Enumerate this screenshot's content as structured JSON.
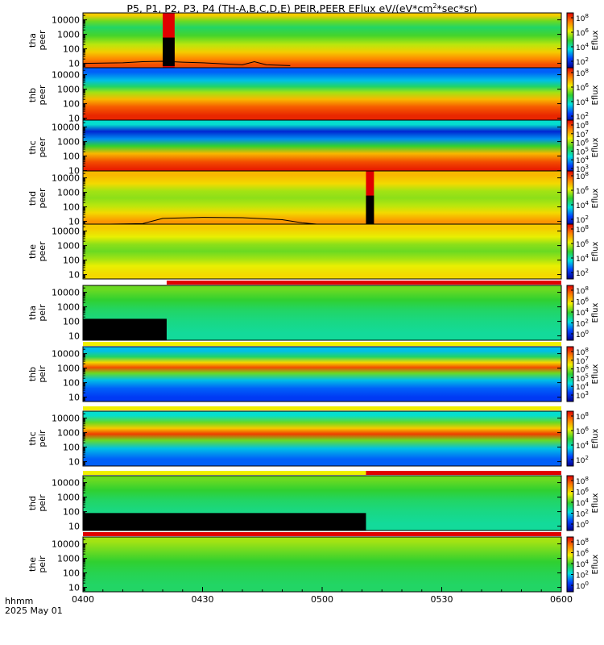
{
  "title": {
    "prefix": "P5, P1, P2, P3, P4 (TH-A,B,C,D,E) PEIR,PEER EFlux eV/(eV*cm",
    "sup": "2",
    "suffix": "*sec*sr)"
  },
  "footer": {
    "time_label": "hhmm",
    "date_label": "2025 May 01"
  },
  "colors": {
    "dark_blue": "#000090",
    "blue": "#0040ff",
    "cyan": "#00e0e0",
    "green": "#30d030",
    "yellow": "#f0f000",
    "orange": "#ff8000",
    "red": "#e00000",
    "flag_red": "#e00000"
  },
  "chart_data": {
    "type": "heatmap",
    "x_axis": {
      "range": [
        "0400",
        "0600"
      ],
      "tick_labels": [
        "0400",
        "0430",
        "0500",
        "0530",
        "0600"
      ],
      "minor_ticks_between": 5
    },
    "y_axis_common": {
      "scale": "log",
      "range_eV": [
        5,
        30000
      ],
      "tick_labels": [
        "10",
        "100",
        "1000",
        "10000"
      ]
    },
    "panels": [
      {
        "probe_label": "tha",
        "species_label": "peer",
        "colorbar_label": "Eflux",
        "colorbar_ticks": [
          "10",
          "10",
          "10",
          "10"
        ],
        "colorbar_exponents": [
          "2",
          "4",
          "6",
          "8"
        ],
        "color_bands": [
          {
            "energy_eV": 20000,
            "level": 0.72
          },
          {
            "energy_eV": 8000,
            "level": 0.55
          },
          {
            "energy_eV": 3000,
            "level": 0.45
          },
          {
            "energy_eV": 800,
            "level": 0.52
          },
          {
            "energy_eV": 200,
            "level": 0.62
          },
          {
            "energy_eV": 60,
            "level": 0.72
          },
          {
            "energy_eV": 20,
            "level": 0.82
          },
          {
            "energy_eV": 8,
            "level": 0.9
          }
        ],
        "gaps": [
          [
            "0420",
            "0423"
          ]
        ],
        "overlay_line": true,
        "top_flag": null
      },
      {
        "probe_label": "thb",
        "species_label": "peer",
        "colorbar_label": "Eflux",
        "colorbar_ticks": [
          "10",
          "10",
          "10",
          "10"
        ],
        "colorbar_exponents": [
          "2",
          "4",
          "6",
          "8"
        ],
        "color_bands": [
          {
            "energy_eV": 15000,
            "level": 0.2
          },
          {
            "energy_eV": 4000,
            "level": 0.3
          },
          {
            "energy_eV": 1500,
            "level": 0.45
          },
          {
            "energy_eV": 600,
            "level": 0.6
          },
          {
            "energy_eV": 200,
            "level": 0.75
          },
          {
            "energy_eV": 60,
            "level": 0.88
          },
          {
            "energy_eV": 15,
            "level": 0.95
          }
        ],
        "gaps": [],
        "overlay_line": false,
        "top_flag": null
      },
      {
        "probe_label": "thc",
        "species_label": "peer",
        "colorbar_label": "Eflux",
        "colorbar_ticks": [
          "10",
          "10",
          "10",
          "10",
          "10",
          "10"
        ],
        "colorbar_exponents": [
          "3",
          "4",
          "5",
          "6",
          "7",
          "8"
        ],
        "color_bands": [
          {
            "energy_eV": 15000,
            "level": 0.35
          },
          {
            "energy_eV": 5000,
            "level": 0.1
          },
          {
            "energy_eV": 1500,
            "level": 0.25
          },
          {
            "energy_eV": 500,
            "level": 0.5
          },
          {
            "energy_eV": 150,
            "level": 0.75
          },
          {
            "energy_eV": 40,
            "level": 0.9
          },
          {
            "energy_eV": 10,
            "level": 0.97
          }
        ],
        "gaps": [],
        "overlay_line": false,
        "top_flag": null
      },
      {
        "probe_label": "thd",
        "species_label": "peer",
        "colorbar_label": "Eflux",
        "colorbar_ticks": [
          "10",
          "10",
          "10",
          "10"
        ],
        "colorbar_exponents": [
          "2",
          "4",
          "6",
          "8"
        ],
        "color_bands": [
          {
            "energy_eV": 15000,
            "level": 0.75
          },
          {
            "energy_eV": 4000,
            "level": 0.7
          },
          {
            "energy_eV": 1200,
            "level": 0.6
          },
          {
            "energy_eV": 400,
            "level": 0.58
          },
          {
            "energy_eV": 120,
            "level": 0.62
          },
          {
            "energy_eV": 40,
            "level": 0.7
          },
          {
            "energy_eV": 10,
            "level": 0.8
          }
        ],
        "gaps": [
          [
            "0511",
            "0513"
          ]
        ],
        "overlay_line": true,
        "top_flag": null
      },
      {
        "probe_label": "the",
        "species_label": "peer",
        "colorbar_label": "Eflux",
        "colorbar_ticks": [
          "10",
          "10",
          "10",
          "10"
        ],
        "colorbar_exponents": [
          "2",
          "4",
          "6",
          "8"
        ],
        "color_bands": [
          {
            "energy_eV": 15000,
            "level": 0.72
          },
          {
            "energy_eV": 4000,
            "level": 0.66
          },
          {
            "energy_eV": 1200,
            "level": 0.58
          },
          {
            "energy_eV": 400,
            "level": 0.55
          },
          {
            "energy_eV": 120,
            "level": 0.6
          },
          {
            "energy_eV": 40,
            "level": 0.66
          },
          {
            "energy_eV": 10,
            "level": 0.7
          }
        ],
        "gaps": [],
        "overlay_line": false,
        "top_flag": null
      },
      {
        "probe_label": "tha",
        "species_label": "peir",
        "colorbar_label": "Eflux",
        "colorbar_ticks": [
          "10",
          "10",
          "10",
          "10",
          "10"
        ],
        "colorbar_exponents": [
          "0",
          "2",
          "4",
          "6",
          "8"
        ],
        "color_bands": [
          {
            "energy_eV": 15000,
            "level": 0.55
          },
          {
            "energy_eV": 3000,
            "level": 0.5
          },
          {
            "energy_eV": 600,
            "level": 0.45
          },
          {
            "energy_eV": 100,
            "level": 0.42
          },
          {
            "energy_eV": 15,
            "level": 0.4
          }
        ],
        "gaps": [],
        "black_low_region": {
          "from": "0400",
          "to": "0421",
          "below_eV": 150
        },
        "overlay_line": false,
        "top_flag": {
          "from": "0400",
          "to": "0421",
          "color": "white",
          "rest": "red"
        }
      },
      {
        "probe_label": "thb",
        "species_label": "peir",
        "colorbar_label": "Eflux",
        "colorbar_ticks": [
          "10",
          "10",
          "10",
          "10",
          "10",
          "10"
        ],
        "colorbar_exponents": [
          "3",
          "4",
          "5",
          "6",
          "7",
          "8"
        ],
        "color_bands": [
          {
            "energy_eV": 15000,
            "level": 0.3
          },
          {
            "energy_eV": 6000,
            "level": 0.45
          },
          {
            "energy_eV": 2500,
            "level": 0.7
          },
          {
            "energy_eV": 1100,
            "level": 0.9
          },
          {
            "energy_eV": 450,
            "level": 0.55
          },
          {
            "energy_eV": 150,
            "level": 0.3
          },
          {
            "energy_eV": 40,
            "level": 0.2
          },
          {
            "energy_eV": 10,
            "level": 0.15
          }
        ],
        "gaps": [],
        "overlay_line": false,
        "top_flag": {
          "from": "0400",
          "to": "0600",
          "color": "yellow",
          "rest": null
        }
      },
      {
        "probe_label": "thc",
        "species_label": "peir",
        "colorbar_label": "Eflux",
        "colorbar_ticks": [
          "10",
          "10",
          "10",
          "10"
        ],
        "colorbar_exponents": [
          "2",
          "4",
          "6",
          "8"
        ],
        "color_bands": [
          {
            "energy_eV": 15000,
            "level": 0.35
          },
          {
            "energy_eV": 5000,
            "level": 0.55
          },
          {
            "energy_eV": 2000,
            "level": 0.72
          },
          {
            "energy_eV": 800,
            "level": 0.92
          },
          {
            "energy_eV": 300,
            "level": 0.55
          },
          {
            "energy_eV": 80,
            "level": 0.3
          },
          {
            "energy_eV": 15,
            "level": 0.2
          }
        ],
        "gaps": [],
        "overlay_line": false,
        "top_flag": {
          "from": "0400",
          "to": "0600",
          "color": "yellow",
          "rest": null
        }
      },
      {
        "probe_label": "thd",
        "species_label": "peir",
        "colorbar_label": "Eflux",
        "colorbar_ticks": [
          "10",
          "10",
          "10",
          "10",
          "10"
        ],
        "colorbar_exponents": [
          "0",
          "2",
          "4",
          "6",
          "8"
        ],
        "color_bands": [
          {
            "energy_eV": 15000,
            "level": 0.55
          },
          {
            "energy_eV": 3000,
            "level": 0.5
          },
          {
            "energy_eV": 600,
            "level": 0.45
          },
          {
            "energy_eV": 100,
            "level": 0.42
          },
          {
            "energy_eV": 15,
            "level": 0.4
          }
        ],
        "gaps": [],
        "black_low_region": {
          "from": "0400",
          "to": "0511",
          "below_eV": 80
        },
        "overlay_line": false,
        "top_flag": {
          "from": "0400",
          "to": "0511",
          "color": "yellow",
          "rest": "red"
        }
      },
      {
        "probe_label": "the",
        "species_label": "peir",
        "colorbar_label": "Eflux",
        "colorbar_ticks": [
          "10",
          "10",
          "10",
          "10",
          "10"
        ],
        "colorbar_exponents": [
          "0",
          "2",
          "4",
          "6",
          "8"
        ],
        "color_bands": [
          {
            "energy_eV": 15000,
            "level": 0.6
          },
          {
            "energy_eV": 3000,
            "level": 0.55
          },
          {
            "energy_eV": 600,
            "level": 0.5
          },
          {
            "energy_eV": 100,
            "level": 0.47
          },
          {
            "energy_eV": 15,
            "level": 0.45
          }
        ],
        "gaps": [],
        "overlay_line": false,
        "top_flag": {
          "from": "0400",
          "to": "0600",
          "color": "red",
          "rest": null
        }
      }
    ]
  }
}
